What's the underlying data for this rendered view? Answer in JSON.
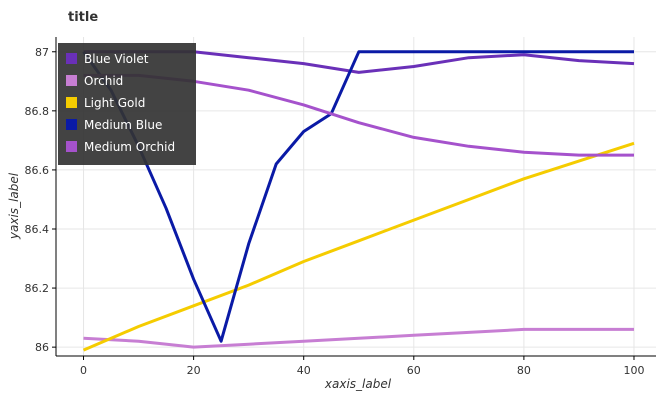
{
  "chart_data": {
    "type": "line",
    "title": "title",
    "xlabel": "xaxis_label",
    "ylabel": "yaxis_label",
    "xlim": [
      -5,
      104
    ],
    "ylim": [
      85.97,
      87.05
    ],
    "xticks": [
      0,
      20,
      40,
      60,
      80,
      100
    ],
    "yticks": [
      86.0,
      86.2,
      86.4,
      86.6,
      86.8,
      87.0
    ],
    "xtick_labels": [
      "0",
      "20",
      "40",
      "60",
      "80",
      "100"
    ],
    "ytick_labels": [
      "86",
      "86.2",
      "86.4",
      "86.6",
      "86.8",
      "87"
    ],
    "grid": true,
    "legend_position": "top-left",
    "series": [
      {
        "name": "Blue Violet",
        "color": "#6a30b8",
        "x": [
          0,
          10,
          20,
          30,
          40,
          50,
          60,
          70,
          80,
          90,
          100
        ],
        "y": [
          87.0,
          87.0,
          87.0,
          86.98,
          86.96,
          86.93,
          86.95,
          86.98,
          86.99,
          86.97,
          86.96
        ]
      },
      {
        "name": "Orchid",
        "color": "#c77ed3",
        "x": [
          0,
          10,
          20,
          30,
          40,
          50,
          60,
          70,
          80,
          90,
          100
        ],
        "y": [
          86.03,
          86.02,
          86.0,
          86.01,
          86.02,
          86.03,
          86.04,
          86.05,
          86.06,
          86.06,
          86.06
        ]
      },
      {
        "name": "Light Gold",
        "color": "#f5cc00",
        "x": [
          0,
          10,
          20,
          30,
          40,
          50,
          60,
          70,
          80,
          90,
          100
        ],
        "y": [
          85.99,
          86.07,
          86.14,
          86.21,
          86.29,
          86.36,
          86.43,
          86.5,
          86.57,
          86.63,
          86.69
        ]
      },
      {
        "name": "Medium Blue",
        "color": "#0a1aa6",
        "x": [
          0,
          5,
          10,
          15,
          20,
          25,
          30,
          35,
          40,
          45,
          50,
          60,
          70,
          80,
          90,
          100
        ],
        "y": [
          87.0,
          86.87,
          86.68,
          86.47,
          86.23,
          86.02,
          86.35,
          86.62,
          86.73,
          86.79,
          87.0,
          87.0,
          87.0,
          87.0,
          87.0,
          87.0
        ]
      },
      {
        "name": "Medium Orchid",
        "color": "#a552cc",
        "x": [
          0,
          10,
          20,
          30,
          40,
          50,
          60,
          70,
          80,
          90,
          100
        ],
        "y": [
          86.92,
          86.92,
          86.9,
          86.87,
          86.82,
          86.76,
          86.71,
          86.68,
          86.66,
          86.65,
          86.65
        ]
      }
    ]
  }
}
